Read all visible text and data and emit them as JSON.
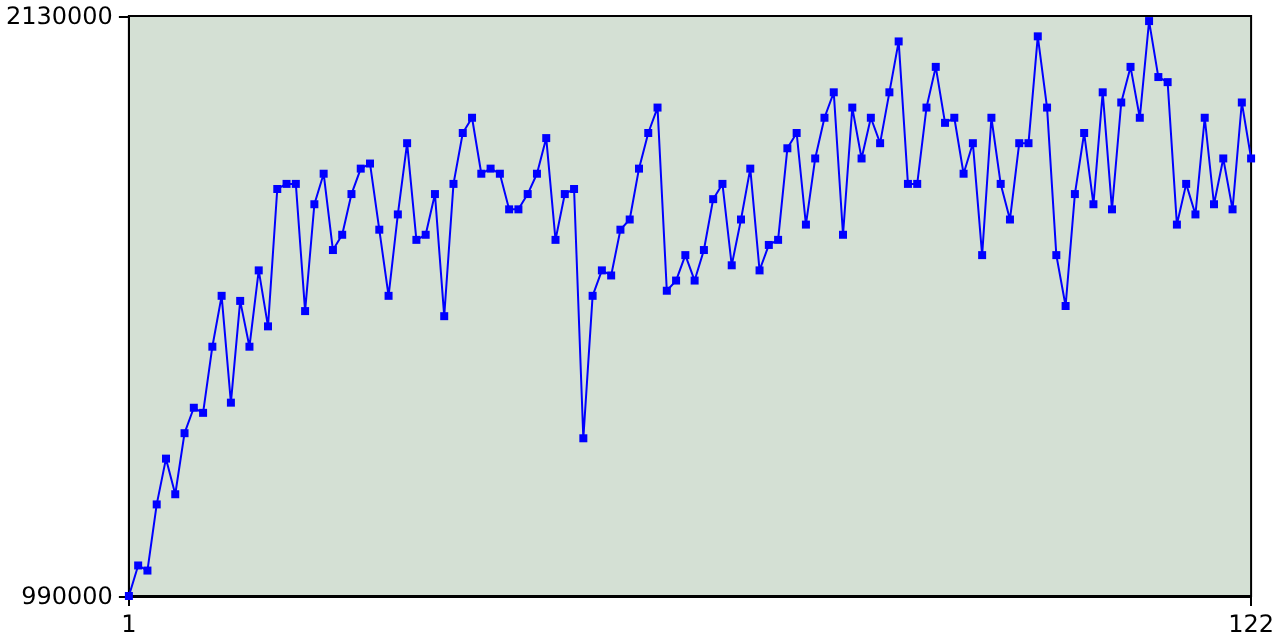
{
  "chart_data": {
    "type": "line",
    "x": [
      1,
      2,
      3,
      4,
      5,
      6,
      7,
      8,
      9,
      10,
      11,
      12,
      13,
      14,
      15,
      16,
      17,
      18,
      19,
      20,
      21,
      22,
      23,
      24,
      25,
      26,
      27,
      28,
      29,
      30,
      31,
      32,
      33,
      34,
      35,
      36,
      37,
      38,
      39,
      40,
      41,
      42,
      43,
      44,
      45,
      46,
      47,
      48,
      49,
      50,
      51,
      52,
      53,
      54,
      55,
      56,
      57,
      58,
      59,
      60,
      61,
      62,
      63,
      64,
      65,
      66,
      67,
      68,
      69,
      70,
      71,
      72,
      73,
      74,
      75,
      76,
      77,
      78,
      79,
      80,
      81,
      82,
      83,
      84,
      85,
      86,
      87,
      88,
      89,
      90,
      91,
      92,
      93,
      94,
      95,
      96,
      97,
      98,
      99,
      100,
      101,
      102,
      103,
      104,
      105,
      106,
      107,
      108,
      109,
      110,
      111,
      112,
      113,
      114,
      115,
      116,
      117,
      118,
      119,
      120,
      121,
      122
    ],
    "series": [
      {
        "color": "#0000ff",
        "values": [
          990000,
          1050000,
          1040000,
          1170000,
          1260000,
          1190000,
          1310000,
          1360000,
          1350000,
          1480000,
          1580000,
          1370000,
          1570000,
          1480000,
          1630000,
          1520000,
          1790000,
          1800000,
          1800000,
          1550000,
          1760000,
          1820000,
          1670000,
          1700000,
          1780000,
          1830000,
          1840000,
          1710000,
          1580000,
          1740000,
          1880000,
          1690000,
          1700000,
          1780000,
          1540000,
          1800000,
          1900000,
          1930000,
          1820000,
          1830000,
          1820000,
          1750000,
          1750000,
          1780000,
          1820000,
          1890000,
          1690000,
          1780000,
          1790000,
          1300000,
          1580000,
          1630000,
          1620000,
          1710000,
          1730000,
          1830000,
          1900000,
          1950000,
          1590000,
          1610000,
          1660000,
          1610000,
          1670000,
          1770000,
          1800000,
          1640000,
          1730000,
          1830000,
          1630000,
          1680000,
          1690000,
          1870000,
          1900000,
          1720000,
          1850000,
          1930000,
          1980000,
          1700000,
          1950000,
          1850000,
          1930000,
          1880000,
          1980000,
          2080000,
          1800000,
          1800000,
          1950000,
          2030000,
          1920000,
          1930000,
          1820000,
          1880000,
          1660000,
          1930000,
          1800000,
          1730000,
          1880000,
          1880000,
          2090000,
          1950000,
          1660000,
          1560000,
          1780000,
          1900000,
          1760000,
          1980000,
          1750000,
          1960000,
          2030000,
          1930000,
          2120000,
          2010000,
          2000000,
          1720000,
          1800000,
          1740000,
          1930000,
          1760000,
          1850000,
          1750000,
          1960000,
          1850000
        ]
      }
    ],
    "xlim": [
      1,
      122
    ],
    "xticks": [
      1,
      122
    ],
    "ylim": [
      990000,
      2130000
    ],
    "yticks": [
      990000,
      2130000
    ],
    "grid": false,
    "marker": "square",
    "line_style": "solid"
  }
}
